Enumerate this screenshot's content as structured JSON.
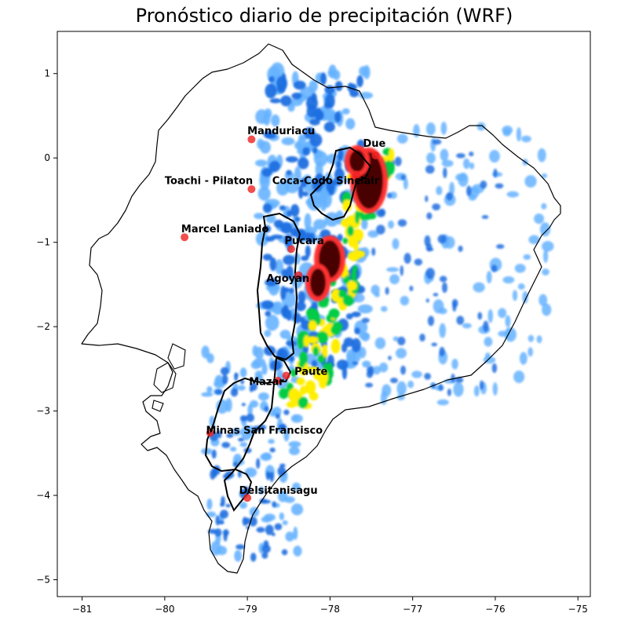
{
  "title": "Pronóstico diario de precipitación (WRF)",
  "map": {
    "xlim": [
      -81.3,
      -74.85
    ],
    "ylim": [
      -5.2,
      1.5
    ],
    "x_ticks": [
      -81,
      -80,
      -79,
      -78,
      -77,
      -76,
      -75
    ],
    "y_ticks": [
      1,
      0,
      -1,
      -2,
      -3,
      -4,
      -5
    ],
    "x_tick_labels": [
      "−81",
      "−80",
      "−79",
      "−78",
      "−77",
      "−76",
      "−75"
    ],
    "y_tick_labels": [
      "1",
      "0",
      "−1",
      "−2",
      "−3",
      "−4",
      "−5"
    ],
    "grid": false,
    "colors": {
      "outline": "#000000",
      "station": "#ee2222",
      "precip_light": "#66b3ff",
      "precip_medium": "#1e6fe0",
      "precip_high": "#00cc44",
      "precip_higher": "#ffee00",
      "precip_heavy": "#ff3333",
      "precip_extreme": "#4a0000"
    }
  },
  "stations": [
    {
      "name": "Manduriacu",
      "lon": -78.95,
      "lat": 0.22,
      "label_lon": -79.0,
      "label_lat": 0.28,
      "anchor": "start"
    },
    {
      "name": "Due",
      "lon": -77.45,
      "lat": 0.03,
      "label_lon": -77.6,
      "label_lat": 0.13,
      "anchor": "start"
    },
    {
      "name": "Toachi - Pilaton",
      "lon": -78.95,
      "lat": -0.37,
      "label_lon": -80.0,
      "label_lat": -0.31,
      "anchor": "start"
    },
    {
      "name": "Coca-Codo Sinclair",
      "lon": -77.68,
      "lat": -0.2,
      "label_lon": -78.7,
      "label_lat": -0.31,
      "anchor": "start"
    },
    {
      "name": "Marcel Laniado",
      "lon": -79.76,
      "lat": -0.94,
      "label_lon": -79.8,
      "label_lat": -0.88,
      "anchor": "start"
    },
    {
      "name": "Pucara",
      "lon": -78.47,
      "lat": -1.08,
      "label_lon": -78.55,
      "label_lat": -1.02,
      "anchor": "start"
    },
    {
      "name": "Agoyan",
      "lon": -78.38,
      "lat": -1.39,
      "label_lon": -78.77,
      "label_lat": -1.47,
      "anchor": "start"
    },
    {
      "name": "Mazar",
      "lon": -78.63,
      "lat": -2.64,
      "label_lon": -78.98,
      "label_lat": -2.69,
      "anchor": "start"
    },
    {
      "name": "Paute",
      "lon": -78.53,
      "lat": -2.58,
      "label_lon": -78.43,
      "label_lat": -2.57,
      "anchor": "start"
    },
    {
      "name": "Minas San Francisco",
      "lon": -79.45,
      "lat": -3.26,
      "label_lon": -79.5,
      "label_lat": -3.27,
      "anchor": "start"
    },
    {
      "name": "Delsitanisagu",
      "lon": -79.0,
      "lat": -4.03,
      "label_lon": -79.1,
      "label_lat": -3.98,
      "anchor": "start"
    }
  ]
}
